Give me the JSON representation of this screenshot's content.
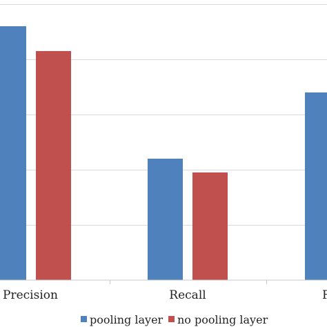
{
  "chart_data": {
    "type": "bar",
    "categories": [
      "Precision",
      "Recall",
      "F"
    ],
    "series": [
      {
        "name": "pooling layer",
        "color": "#4f81bd",
        "values": [
          0.92,
          0.44,
          0.68
        ]
      },
      {
        "name": "no pooling layer",
        "color": "#c0504d",
        "values": [
          0.83,
          0.39,
          null
        ]
      }
    ],
    "ylim": [
      0,
      1.0
    ],
    "grid": true,
    "legend": "bottom"
  }
}
